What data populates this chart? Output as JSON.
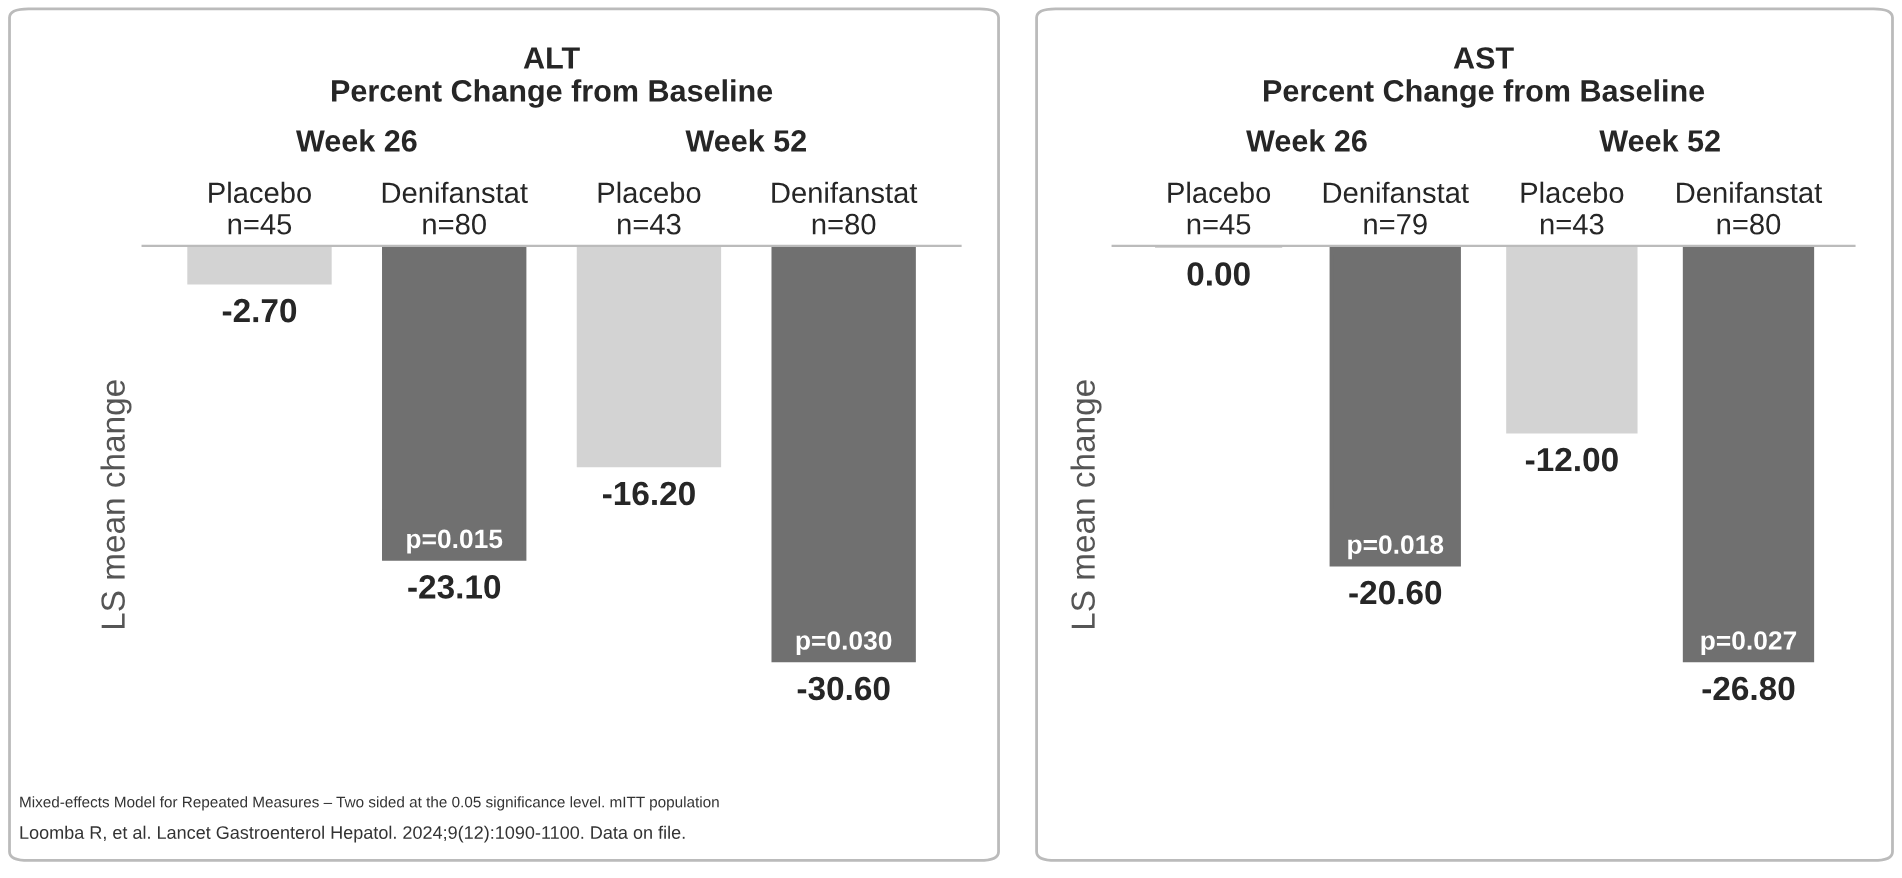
{
  "chart_data": [
    {
      "type": "bar",
      "title": "ALT\nPercent Change from Baseline",
      "ylabel": "LS mean change",
      "categories": [
        "Placebo\nn=45",
        "Denifanstat\nn=80",
        "Placebo\nn=43",
        "Denifanstat\nn=80"
      ],
      "values": [
        -2.7,
        -23.1,
        -16.2,
        -30.6
      ],
      "colors": [
        "#d3d3d3",
        "#707070",
        "#d3d3d3",
        "#707070"
      ],
      "value_labels": [
        "-2.70",
        "-23.10",
        "-16.20",
        "-30.60"
      ],
      "annotations": [
        "Week 26",
        "Week 52",
        "p=0.015",
        "p=0.030",
        "Mixed-effects Model for Repeated Measures – Two sided at the 0.05 significance level. mITT population",
        "Loomba R, et al. Lancet Gastroenterol Hepatol. 2024;9(12):1090-1100. Data on file."
      ]
    },
    {
      "type": "bar",
      "title": "AST\nPercent Change from Baseline",
      "ylabel": "LS mean change",
      "categories": [
        "Placebo\nn=45",
        "Denifanstat\nn=79",
        "Placebo\nn=43",
        "Denifanstat\nn=80"
      ],
      "values": [
        0.0,
        -20.6,
        -12.0,
        -26.8
      ],
      "colors": [
        "#d3d3d3",
        "#707070",
        "#d3d3d3",
        "#707070"
      ],
      "value_labels": [
        "0.00",
        "-20.60",
        "-12.00",
        "-26.80"
      ],
      "annotations": [
        "Week 26",
        "Week 52",
        "p=0.018",
        "p=0.027"
      ]
    }
  ]
}
